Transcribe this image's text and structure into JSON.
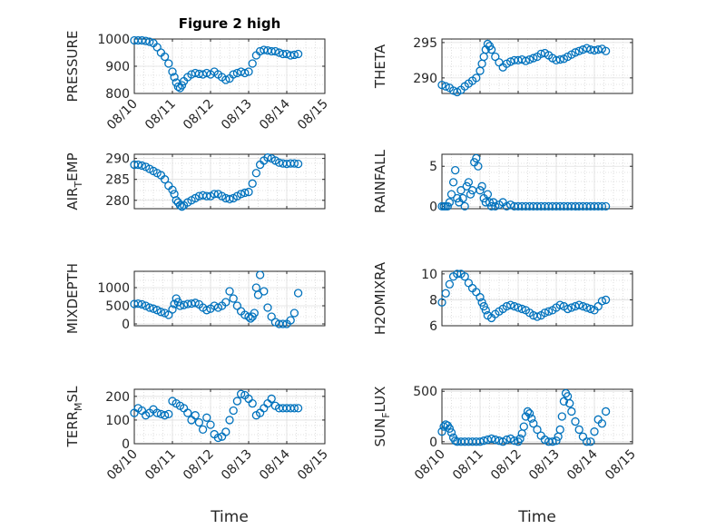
{
  "colors": {
    "marker": "#0072BD",
    "axis": "#262626"
  },
  "chart_data": [
    {
      "type": "scatter",
      "title": "Figure 2 high",
      "ylabel": "PRESSURE",
      "xlabel": "",
      "xlim": [
        0,
        5
      ],
      "ylim": [
        800,
        1000
      ],
      "yticks": [
        800,
        900,
        1000
      ],
      "xtick_labels": [
        "08/10",
        "08/11",
        "08/12",
        "08/13",
        "08/14",
        "08/15"
      ],
      "x": [
        0.0,
        0.1,
        0.2,
        0.3,
        0.4,
        0.5,
        0.6,
        0.7,
        0.8,
        0.9,
        1.0,
        1.05,
        1.1,
        1.15,
        1.2,
        1.25,
        1.3,
        1.4,
        1.5,
        1.6,
        1.7,
        1.8,
        1.9,
        2.0,
        2.1,
        2.2,
        2.3,
        2.4,
        2.5,
        2.6,
        2.7,
        2.8,
        2.9,
        3.0,
        3.1,
        3.2,
        3.3,
        3.4,
        3.5,
        3.6,
        3.7,
        3.8,
        3.9,
        4.0,
        4.1,
        4.2,
        4.3
      ],
      "y": [
        995,
        995,
        995,
        993,
        990,
        985,
        970,
        950,
        935,
        910,
        880,
        860,
        840,
        825,
        820,
        830,
        845,
        860,
        870,
        875,
        872,
        870,
        875,
        870,
        880,
        870,
        860,
        850,
        855,
        870,
        875,
        880,
        875,
        880,
        910,
        940,
        955,
        960,
        958,
        955,
        955,
        950,
        945,
        945,
        940,
        942,
        945
      ]
    },
    {
      "type": "scatter",
      "title": "",
      "ylabel": "THETA",
      "xlabel": "",
      "xlim": [
        0,
        5
      ],
      "ylim": [
        287.8,
        295.5
      ],
      "yticks": [
        290,
        295
      ],
      "xtick_labels": [],
      "x": [
        0.0,
        0.1,
        0.2,
        0.3,
        0.4,
        0.5,
        0.6,
        0.7,
        0.8,
        0.9,
        1.0,
        1.05,
        1.1,
        1.15,
        1.2,
        1.25,
        1.3,
        1.4,
        1.5,
        1.6,
        1.7,
        1.8,
        1.9,
        2.0,
        2.1,
        2.2,
        2.3,
        2.4,
        2.5,
        2.6,
        2.7,
        2.8,
        2.9,
        3.0,
        3.1,
        3.2,
        3.3,
        3.4,
        3.5,
        3.6,
        3.7,
        3.8,
        3.9,
        4.0,
        4.1,
        4.2,
        4.3
      ],
      "y": [
        289,
        288.8,
        288.6,
        288.2,
        288.0,
        288.3,
        288.8,
        289.2,
        289.6,
        290.0,
        291.0,
        292.0,
        293.0,
        294.0,
        294.8,
        294.5,
        294.0,
        293.0,
        292.2,
        291.5,
        292.0,
        292.3,
        292.5,
        292.5,
        292.6,
        292.4,
        292.6,
        292.8,
        293.0,
        293.4,
        293.5,
        293.2,
        292.8,
        292.5,
        292.6,
        292.7,
        293.0,
        293.3,
        293.6,
        293.8,
        294.0,
        294.2,
        294.0,
        293.9,
        294.0,
        294.1,
        293.8
      ]
    },
    {
      "type": "scatter",
      "title": "",
      "ylabel": "AIR_TEMP",
      "xlabel": "",
      "xlim": [
        0,
        5
      ],
      "ylim": [
        278,
        291
      ],
      "yticks": [
        280,
        285,
        290
      ],
      "xtick_labels": [],
      "x": [
        0.0,
        0.1,
        0.2,
        0.3,
        0.4,
        0.5,
        0.6,
        0.7,
        0.8,
        0.9,
        1.0,
        1.05,
        1.1,
        1.15,
        1.2,
        1.25,
        1.3,
        1.4,
        1.5,
        1.6,
        1.7,
        1.8,
        1.9,
        2.0,
        2.1,
        2.2,
        2.3,
        2.4,
        2.5,
        2.6,
        2.7,
        2.8,
        2.9,
        3.0,
        3.1,
        3.2,
        3.3,
        3.4,
        3.5,
        3.6,
        3.7,
        3.8,
        3.9,
        4.0,
        4.1,
        4.2,
        4.3
      ],
      "y": [
        288.5,
        288.5,
        288.3,
        288.0,
        287.5,
        287.0,
        286.5,
        286.0,
        285.0,
        283.5,
        282.5,
        281.5,
        280.0,
        279.5,
        278.8,
        278.5,
        278.8,
        279.5,
        280.0,
        280.5,
        281.0,
        281.2,
        281.0,
        281.0,
        281.5,
        281.5,
        281.0,
        280.5,
        280.3,
        280.5,
        281.0,
        281.5,
        281.8,
        282.0,
        284.0,
        286.5,
        288.5,
        289.5,
        290.2,
        290.0,
        289.5,
        289.0,
        288.8,
        288.7,
        288.8,
        288.8,
        288.7
      ]
    },
    {
      "type": "scatter",
      "title": "",
      "ylabel": "RAINFALL",
      "xlabel": "",
      "xlim": [
        0,
        5
      ],
      "ylim": [
        -0.3,
        6.5
      ],
      "yticks": [
        0,
        5
      ],
      "xtick_labels": [],
      "x": [
        0.0,
        0.05,
        0.1,
        0.15,
        0.2,
        0.25,
        0.3,
        0.35,
        0.4,
        0.45,
        0.5,
        0.55,
        0.6,
        0.65,
        0.7,
        0.75,
        0.8,
        0.85,
        0.9,
        0.95,
        1.0,
        1.05,
        1.1,
        1.15,
        1.2,
        1.25,
        1.3,
        1.35,
        1.4,
        1.5,
        1.6,
        1.7,
        1.8,
        1.9,
        2.0,
        2.1,
        2.2,
        2.3,
        2.4,
        2.5,
        2.6,
        2.7,
        2.8,
        2.9,
        3.0,
        3.1,
        3.2,
        3.3,
        3.4,
        3.5,
        3.6,
        3.7,
        3.8,
        3.9,
        4.0,
        4.1,
        4.2,
        4.3
      ],
      "y": [
        0,
        0,
        0,
        0,
        0.5,
        1.5,
        3.0,
        4.5,
        1.0,
        0.5,
        2.0,
        1.0,
        0,
        2.5,
        3.0,
        1.5,
        2.0,
        5.5,
        6.0,
        5.0,
        2.0,
        2.5,
        1.0,
        0.5,
        1.5,
        0.5,
        0,
        0.5,
        0,
        0.2,
        0.5,
        0,
        0.2,
        0,
        0,
        0,
        0,
        0,
        0,
        0,
        0,
        0,
        0,
        0,
        0,
        0,
        0,
        0,
        0,
        0,
        0,
        0,
        0,
        0,
        0,
        0,
        0,
        0
      ]
    },
    {
      "type": "scatter",
      "title": "",
      "ylabel": "MIXDEPTH",
      "xlabel": "",
      "xlim": [
        0,
        5
      ],
      "ylim": [
        -50,
        1450
      ],
      "yticks": [
        0,
        500,
        1000
      ],
      "xtick_labels": [],
      "x": [
        0.0,
        0.1,
        0.2,
        0.3,
        0.4,
        0.5,
        0.6,
        0.7,
        0.8,
        0.9,
        1.0,
        1.05,
        1.1,
        1.15,
        1.2,
        1.3,
        1.4,
        1.5,
        1.6,
        1.7,
        1.8,
        1.9,
        2.0,
        2.1,
        2.2,
        2.3,
        2.4,
        2.5,
        2.6,
        2.7,
        2.8,
        2.9,
        3.0,
        3.05,
        3.1,
        3.15,
        3.2,
        3.25,
        3.3,
        3.4,
        3.5,
        3.6,
        3.7,
        3.8,
        3.9,
        4.0,
        4.1,
        4.2,
        4.3
      ],
      "y": [
        550,
        560,
        540,
        500,
        450,
        420,
        380,
        330,
        300,
        250,
        400,
        550,
        700,
        600,
        500,
        520,
        550,
        560,
        580,
        540,
        450,
        380,
        420,
        500,
        450,
        500,
        600,
        900,
        700,
        500,
        350,
        250,
        200,
        150,
        200,
        300,
        1000,
        800,
        1350,
        900,
        450,
        200,
        50,
        0,
        0,
        0,
        100,
        300,
        850
      ]
    },
    {
      "type": "scatter",
      "title": "",
      "ylabel": "H2OMIXRA",
      "xlabel": "",
      "xlim": [
        0,
        5
      ],
      "ylim": [
        6,
        10.2
      ],
      "yticks": [
        6,
        8,
        10
      ],
      "xtick_labels": [],
      "x": [
        0.0,
        0.1,
        0.2,
        0.3,
        0.4,
        0.5,
        0.6,
        0.7,
        0.8,
        0.9,
        1.0,
        1.05,
        1.1,
        1.15,
        1.2,
        1.3,
        1.4,
        1.5,
        1.6,
        1.7,
        1.8,
        1.9,
        2.0,
        2.1,
        2.2,
        2.3,
        2.4,
        2.5,
        2.6,
        2.7,
        2.8,
        2.9,
        3.0,
        3.1,
        3.2,
        3.3,
        3.4,
        3.5,
        3.6,
        3.7,
        3.8,
        3.9,
        4.0,
        4.1,
        4.2,
        4.3
      ],
      "y": [
        7.8,
        8.5,
        9.2,
        9.8,
        10.0,
        10.0,
        9.8,
        9.3,
        8.9,
        8.6,
        8.2,
        7.8,
        7.5,
        7.2,
        6.8,
        6.6,
        6.9,
        7.1,
        7.3,
        7.5,
        7.6,
        7.5,
        7.4,
        7.3,
        7.2,
        7.0,
        6.8,
        6.7,
        6.8,
        7.0,
        7.1,
        7.2,
        7.4,
        7.6,
        7.5,
        7.3,
        7.4,
        7.5,
        7.6,
        7.5,
        7.4,
        7.3,
        7.2,
        7.5,
        7.9,
        8.0
      ]
    },
    {
      "type": "scatter",
      "title": "",
      "ylabel": "TERR_MSL",
      "xlabel": "Time",
      "xlim": [
        0,
        5
      ],
      "ylim": [
        0,
        230
      ],
      "yticks": [
        0,
        100,
        200
      ],
      "xtick_labels": [
        "08/10",
        "08/11",
        "08/12",
        "08/13",
        "08/14",
        "08/15"
      ],
      "x": [
        0.0,
        0.1,
        0.2,
        0.3,
        0.4,
        0.5,
        0.6,
        0.7,
        0.8,
        0.9,
        1.0,
        1.1,
        1.2,
        1.3,
        1.4,
        1.5,
        1.6,
        1.7,
        1.8,
        1.9,
        2.0,
        2.1,
        2.2,
        2.3,
        2.4,
        2.5,
        2.6,
        2.7,
        2.8,
        2.9,
        3.0,
        3.1,
        3.2,
        3.3,
        3.4,
        3.5,
        3.6,
        3.7,
        3.8,
        3.9,
        4.0,
        4.1,
        4.2,
        4.3
      ],
      "y": [
        130,
        150,
        140,
        120,
        130,
        145,
        130,
        125,
        120,
        125,
        180,
        170,
        160,
        150,
        130,
        100,
        120,
        90,
        60,
        110,
        80,
        40,
        25,
        30,
        50,
        100,
        140,
        180,
        210,
        205,
        190,
        170,
        120,
        130,
        150,
        170,
        190,
        160,
        150,
        150,
        150,
        150,
        150,
        150
      ]
    },
    {
      "type": "scatter",
      "title": "",
      "ylabel": "SUN_FLUX",
      "xlabel": "Time",
      "xlim": [
        0,
        5
      ],
      "ylim": [
        -20,
        520
      ],
      "yticks": [
        0,
        500
      ],
      "xtick_labels": [
        "08/10",
        "08/11",
        "08/12",
        "08/13",
        "08/14",
        "08/15"
      ],
      "x": [
        0.0,
        0.05,
        0.1,
        0.15,
        0.2,
        0.25,
        0.3,
        0.35,
        0.4,
        0.5,
        0.6,
        0.7,
        0.8,
        0.9,
        1.0,
        1.1,
        1.2,
        1.3,
        1.4,
        1.5,
        1.6,
        1.7,
        1.8,
        1.9,
        2.0,
        2.05,
        2.1,
        2.15,
        2.2,
        2.25,
        2.3,
        2.35,
        2.4,
        2.5,
        2.6,
        2.7,
        2.8,
        2.9,
        3.0,
        3.05,
        3.1,
        3.15,
        3.2,
        3.25,
        3.3,
        3.35,
        3.4,
        3.5,
        3.6,
        3.7,
        3.8,
        3.9,
        4.0,
        4.1,
        4.2,
        4.3
      ],
      "y": [
        100,
        150,
        170,
        160,
        130,
        90,
        40,
        10,
        0,
        0,
        0,
        0,
        0,
        0,
        0,
        10,
        20,
        30,
        20,
        10,
        0,
        20,
        30,
        10,
        0,
        30,
        80,
        150,
        250,
        300,
        280,
        230,
        180,
        120,
        60,
        20,
        0,
        0,
        10,
        50,
        120,
        250,
        400,
        480,
        450,
        380,
        300,
        200,
        120,
        50,
        0,
        0,
        100,
        220,
        180,
        300
      ]
    }
  ]
}
